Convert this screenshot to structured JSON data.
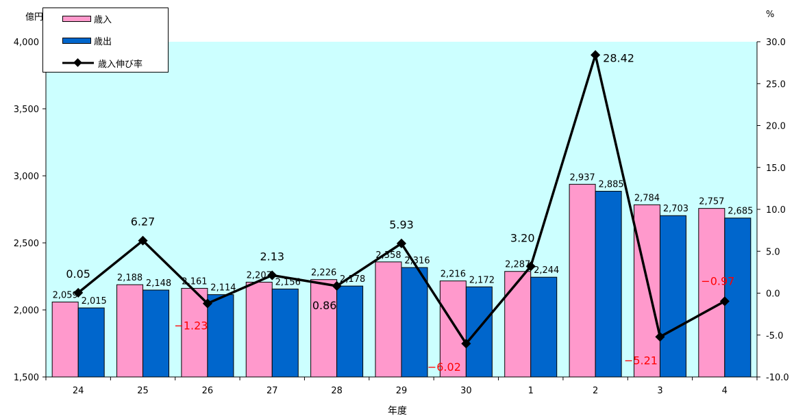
{
  "chart_data": {
    "type": "bar",
    "xlabel": "年度",
    "ylabel_left": "億円",
    "ylabel_right": "%",
    "ylim_left": [
      1500,
      4000
    ],
    "ylim_right": [
      -10.0,
      30.0
    ],
    "yticks_left": [
      "1,500",
      "2,000",
      "2,500",
      "3,000",
      "3,500",
      "4,000"
    ],
    "yticks_right": [
      "-10.0",
      "-5.0",
      "0.0",
      "5.0",
      "10.0",
      "15.0",
      "20.0",
      "25.0",
      "30.0"
    ],
    "categories": [
      "24",
      "25",
      "26",
      "27",
      "28",
      "29",
      "30",
      "1",
      "2",
      "3",
      "4"
    ],
    "series": [
      {
        "name": "歳入",
        "kind": "bar",
        "color": "#ff99cc",
        "values": [
          2059,
          2188,
          2161,
          2207,
          2226,
          2358,
          2216,
          2287,
          2937,
          2784,
          2757
        ],
        "labels": [
          "2,059",
          "2,188",
          "2,161",
          "2,207",
          "2,226",
          "2,358",
          "2,216",
          "2,287",
          "2,937",
          "2,784",
          "2,757"
        ]
      },
      {
        "name": "歳出",
        "kind": "bar",
        "color": "#0066cc",
        "values": [
          2015,
          2148,
          2114,
          2156,
          2178,
          2316,
          2172,
          2244,
          2885,
          2703,
          2685
        ],
        "labels": [
          "2,015",
          "2,148",
          "2,114",
          "2,156",
          "2,178",
          "2,316",
          "2,172",
          "2,244",
          "2,885",
          "2,703",
          "2,685"
        ]
      },
      {
        "name": "歳入伸び率",
        "kind": "line",
        "axis": "right",
        "color": "#000000",
        "values": [
          0.05,
          6.27,
          -1.23,
          2.13,
          0.86,
          5.93,
          -6.02,
          3.2,
          28.42,
          -5.21,
          -0.97
        ],
        "labels": [
          "0.05",
          "6.27",
          "−1.23",
          "2.13",
          "0.86",
          "5.93",
          "−6.02",
          "3.20",
          "28.42",
          "−5.21",
          "−0.97"
        ]
      }
    ],
    "plot_background": "#ccffff",
    "negative_label_color": "#ff0000",
    "legend_position": "top-left",
    "grid": false
  }
}
